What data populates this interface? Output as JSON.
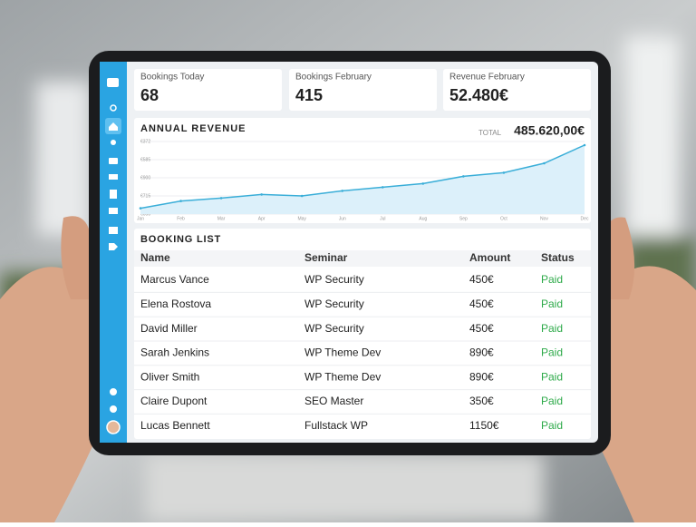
{
  "cards": [
    {
      "label": "Bookings Today",
      "value": "68"
    },
    {
      "label": "Bookings February",
      "value": "415"
    },
    {
      "label": "Revenue February",
      "value": "52.480€"
    }
  ],
  "chart_data": {
    "type": "line",
    "title": "ANNUAL REVENUE",
    "total_label": "TOTAL",
    "total": "485.620,00€",
    "color": "#3aaed8",
    "categories": [
      "Jan",
      "Feb",
      "Mar",
      "Apr",
      "May",
      "Jun",
      "Jul",
      "Aug",
      "Sep",
      "Oct",
      "Nov",
      "Dec"
    ],
    "values": [
      8,
      18,
      22,
      27,
      25,
      32,
      37,
      42,
      52,
      57,
      70,
      95
    ],
    "ylim": [
      0,
      100
    ],
    "y_axis_labels": [
      "€372",
      "€585",
      "€900",
      "€715",
      "€650"
    ]
  },
  "table": {
    "title": "BOOKING LIST",
    "headers": [
      "Name",
      "Seminar",
      "Amount",
      "Status"
    ],
    "rows": [
      [
        "Marcus Vance",
        "WP Security",
        "450€",
        "Paid"
      ],
      [
        "Elena Rostova",
        "WP Security",
        "450€",
        "Paid"
      ],
      [
        "David Miller",
        "WP Security",
        "450€",
        "Paid"
      ],
      [
        "Sarah Jenkins",
        "WP Theme Dev",
        "890€",
        "Paid"
      ],
      [
        "Oliver Smith",
        "WP Theme Dev",
        "890€",
        "Paid"
      ],
      [
        "Claire Dupont",
        "SEO Master",
        "350€",
        "Paid"
      ],
      [
        "Lucas Bennett",
        "Fullstack WP",
        "1150€",
        "Paid"
      ]
    ]
  }
}
